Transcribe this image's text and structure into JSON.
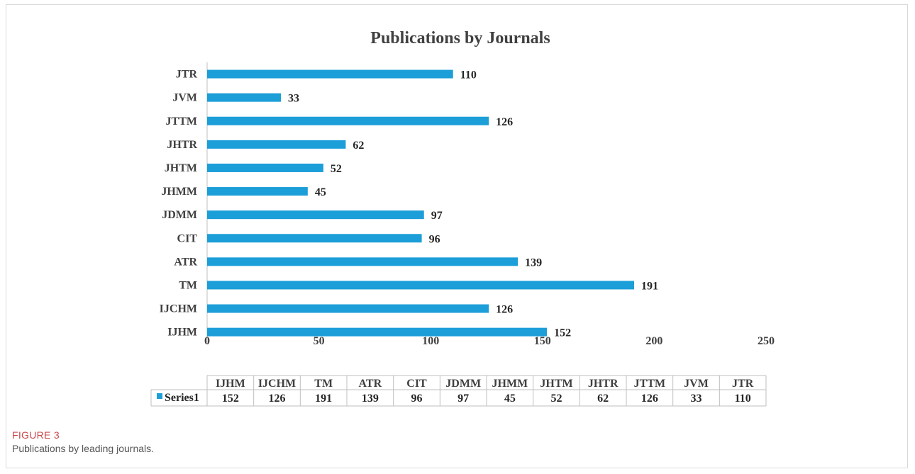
{
  "figure": {
    "label": "FIGURE 3",
    "caption": "Publications by leading journals."
  },
  "colors": {
    "bar": "#1c9ed8",
    "text": "#404040",
    "caption_label": "#c8474b"
  },
  "chart_data": {
    "type": "bar",
    "orientation": "horizontal",
    "title": "Publications by Journals",
    "categories": [
      "IJHM",
      "IJCHM",
      "TM",
      "ATR",
      "CIT",
      "JDMM",
      "JHMM",
      "JHTM",
      "JHTR",
      "JTTM",
      "JVM",
      "JTR"
    ],
    "series": [
      {
        "name": "Series1",
        "values": [
          152,
          126,
          191,
          139,
          96,
          97,
          45,
          52,
          62,
          126,
          33,
          110
        ]
      }
    ],
    "xlim": [
      0,
      250
    ],
    "xticks": [
      0,
      50,
      100,
      150,
      200,
      250
    ],
    "data_labels": true,
    "data_table": true,
    "legend": "in data table"
  }
}
